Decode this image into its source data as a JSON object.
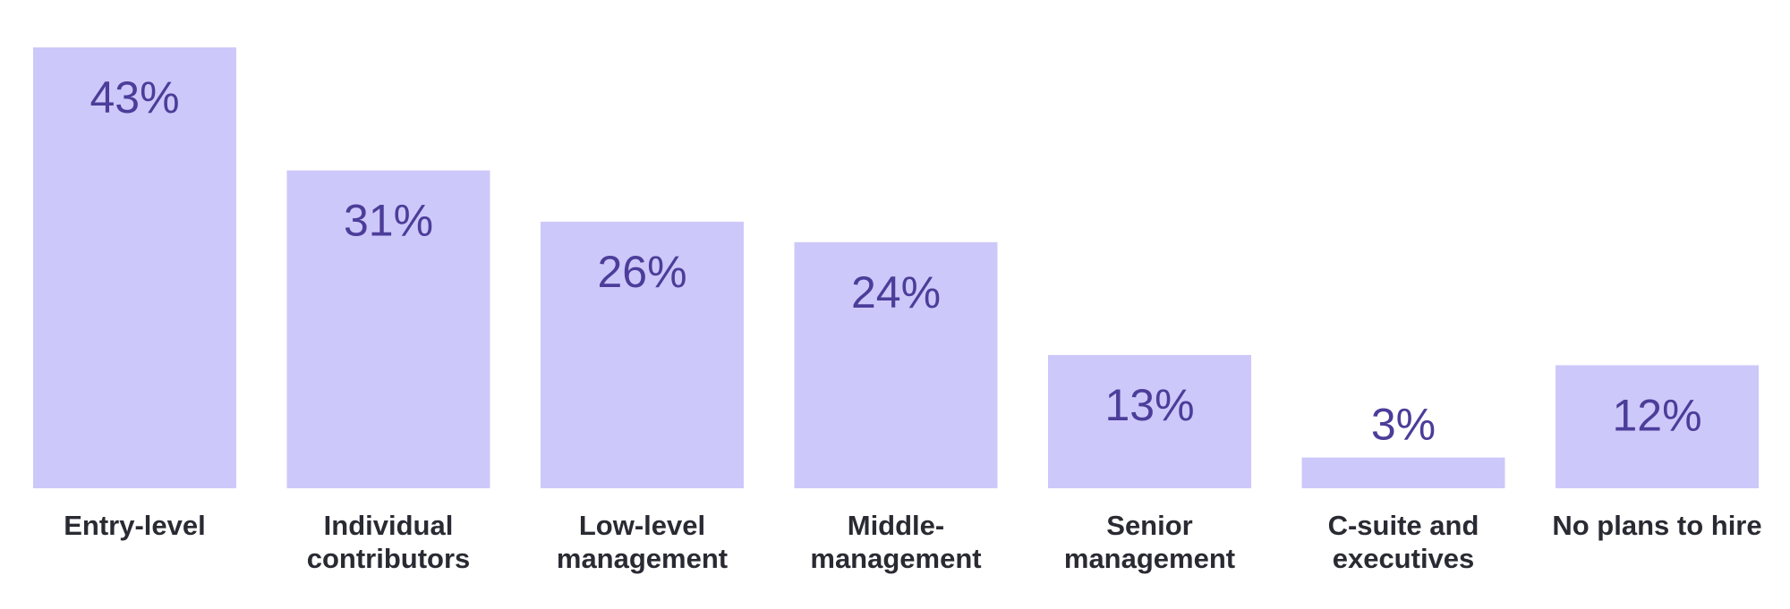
{
  "chart_data": {
    "type": "bar",
    "categories": [
      [
        "Entry-level"
      ],
      [
        "Individual",
        "contributors"
      ],
      [
        "Low-level",
        "management"
      ],
      [
        "Middle-",
        "management"
      ],
      [
        "Senior",
        "management"
      ],
      [
        "C-suite and",
        "executives"
      ],
      [
        "No plans to hire"
      ]
    ],
    "values": [
      43,
      31,
      26,
      24,
      13,
      3,
      12
    ],
    "value_labels": [
      "43%",
      "31%",
      "26%",
      "24%",
      "13%",
      "3%",
      "12%"
    ],
    "unit": "%",
    "ylim": [
      0,
      43
    ],
    "grid": false,
    "legend": "none",
    "colors": {
      "bar": "#cdc8fa",
      "value_text": "#4b3d99",
      "category_text": "#2a2a33"
    }
  }
}
